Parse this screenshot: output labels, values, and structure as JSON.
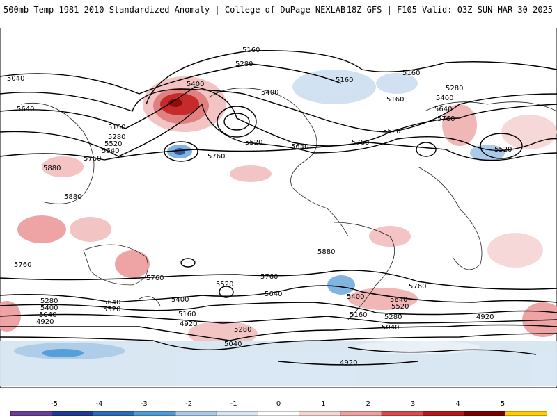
{
  "header": {
    "title": "500mb Temp 1981-2010 Standardized Anomaly | College of DuPage NEXLAB",
    "run_info": "18Z GFS | F105 Valid: 03Z SUN MAR 30 2025"
  },
  "contour_labels": [
    "5160",
    "5280",
    "5400",
    "5520",
    "5640",
    "5760",
    "5880",
    "5040",
    "4920"
  ],
  "legend": {
    "ticks": [
      "-5",
      "-4",
      "-3",
      "-2",
      "-1",
      "0",
      "1",
      "2",
      "3",
      "4",
      "5"
    ],
    "colors": [
      "#6a3d9a",
      "#1f3a93",
      "#2b6cb8",
      "#4f9ad6",
      "#a9cbe8",
      "#d8e6f3",
      "#ffffff",
      "#f7d6d6",
      "#eea0a0",
      "#d94a4a",
      "#b21a1a",
      "#7a0000",
      "#ffcc00"
    ]
  }
}
